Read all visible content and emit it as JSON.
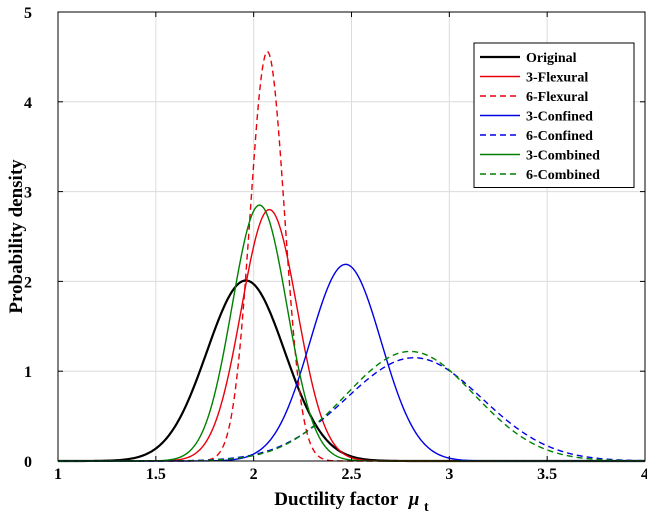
{
  "chart_data": {
    "type": "line",
    "title": "",
    "xlabel": "Ductility factor",
    "xlabel_symbol": "μ",
    "xlabel_subscript": "t",
    "ylabel": "Probability density",
    "xlim": [
      1,
      4
    ],
    "ylim": [
      0,
      5
    ],
    "x_ticks": [
      "1",
      "1.5",
      "2",
      "2.5",
      "3",
      "3.5",
      "4"
    ],
    "y_ticks": [
      "0",
      "1",
      "2",
      "3",
      "4",
      "5"
    ],
    "grid": true,
    "legend_position": "top-right",
    "series": [
      {
        "name": "Original",
        "color": "#000000",
        "dash": "solid",
        "mean": 1.96,
        "std": 0.199,
        "peak": 2.01
      },
      {
        "name": "3-Flexural",
        "color": "#e8000b",
        "dash": "solid",
        "mean": 2.08,
        "std": 0.1425,
        "peak": 2.8
      },
      {
        "name": "6-Flexural",
        "color": "#e8000b",
        "dash": "dashed",
        "mean": 2.07,
        "std": 0.0875,
        "peak": 4.56
      },
      {
        "name": "3-Confined",
        "color": "#0000e6",
        "dash": "solid",
        "mean": 2.47,
        "std": 0.182,
        "peak": 2.19
      },
      {
        "name": "6-Confined",
        "color": "#0000e6",
        "dash": "dashed",
        "mean": 2.82,
        "std": 0.347,
        "peak": 1.15
      },
      {
        "name": "3-Combined",
        "color": "#008000",
        "dash": "solid",
        "mean": 2.03,
        "std": 0.14,
        "peak": 2.85
      },
      {
        "name": "6-Combined",
        "color": "#008000",
        "dash": "dashed",
        "mean": 2.8,
        "std": 0.327,
        "peak": 1.22
      }
    ]
  }
}
